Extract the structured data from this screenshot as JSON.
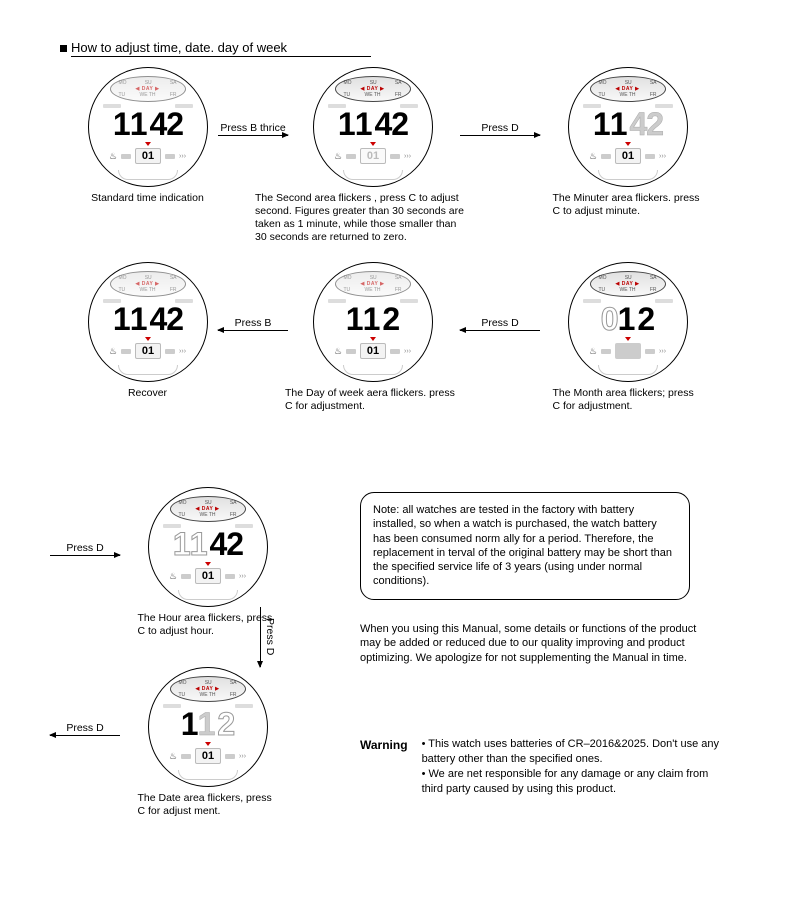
{
  "title": "How to adjust time, date. day of week",
  "day_oval": {
    "top": [
      "MO",
      "SU",
      "SA"
    ],
    "mid": "◀ DAY ▶",
    "bot": [
      "TU",
      "WE TH",
      "FR"
    ]
  },
  "watches": {
    "w1": {
      "d": [
        "1",
        "1",
        "4",
        "2"
      ],
      "dim": [],
      "sub": "01",
      "sub_dim": false,
      "caption": "Standard time indication",
      "oval_dim": true
    },
    "w2": {
      "d": [
        "1",
        "1",
        "4",
        "2"
      ],
      "dim": [],
      "sub": "01",
      "sub_dim": true,
      "caption": "The Second area flickers , press C to adjust second. Figures greater than 30 seconds are taken as 1 minute, while those smaller than 30 seconds are returned to zero."
    },
    "w3": {
      "d": [
        "1",
        "1",
        "4",
        "2"
      ],
      "dim": [
        2,
        3
      ],
      "sub": "01",
      "sub_dim": false,
      "caption": "The Minuter area flickers. press C to adjust minute."
    },
    "w4": {
      "d": [
        "1",
        "1",
        "4",
        "2"
      ],
      "dim": [],
      "sub": "01",
      "sub_dim": false,
      "caption": "Recover",
      "oval_dim": true
    },
    "w5": {
      "d": [
        "1",
        "1",
        "2",
        ""
      ],
      "dim": [],
      "sub": "01",
      "sub_dim": false,
      "caption": "The Day of week aera flickers. press C for adjustment.",
      "oval_dim": true
    },
    "w6": {
      "d": [
        "0",
        "1",
        "2",
        ""
      ],
      "dim": [
        0
      ],
      "outline": [
        0
      ],
      "sub": "",
      "sub_solid": true,
      "caption": "The Month area flickers; press C for adjustment."
    },
    "w7": {
      "d": [
        "1",
        "1",
        "4",
        "2"
      ],
      "dim": [
        0,
        1
      ],
      "outline": [
        0,
        1
      ],
      "sub": "01",
      "sub_dim": false,
      "caption": "The Hour area flickers, press C to adjust hour."
    },
    "w8": {
      "d": [
        "1",
        "1",
        "2",
        ""
      ],
      "dim": [
        1,
        2
      ],
      "outline": [
        2
      ],
      "sub": "01",
      "sub_dim": false,
      "caption": "The Date area flickers, press C for adjust ment."
    }
  },
  "arrows": {
    "a12": "Press B thrice",
    "a23": "Press D",
    "a54": "Press B",
    "a65": "Press D",
    "a7in": "Press D",
    "a78": "Press D",
    "a8out": "Press D"
  },
  "note_box": "Note: all watches are tested in the factory with battery installed, so when a watch is purchased, the watch battery has been consumed norm ally for a period. Therefore, the replacement in terval of the original battery may be short than the specified service life of 3 years  (using under normal conditions).",
  "disclaimer": "When you using this Manual, some details or functions of the product may be added or reduced due to our quality improving and product optimizing. We apologize for not supplementing the Manual in time.",
  "warning_label": "Warning",
  "warning_items": [
    "This watch uses batteries of CR–2016&2025. Don't use any battery other than the specified ones.",
    "We are net responsible for any damage or any claim from third party caused by using this product."
  ]
}
